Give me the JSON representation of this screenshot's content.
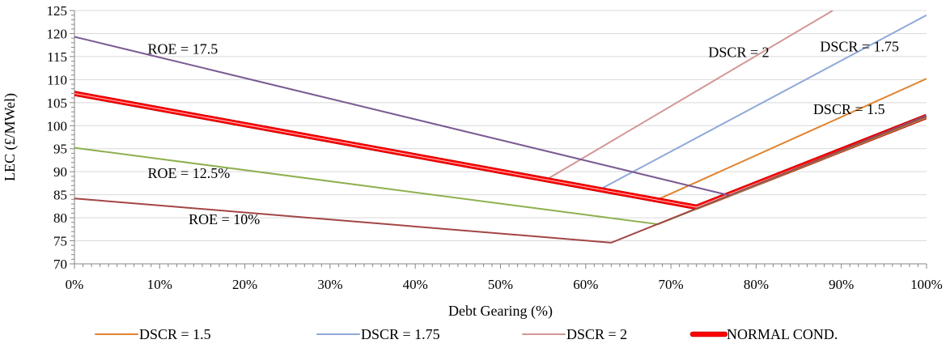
{
  "chart_data": {
    "type": "line",
    "xlabel": "Debt Gearing (%)",
    "ylabel": "LEC (£/MWel)",
    "xlim": [
      0,
      100
    ],
    "ylim": [
      70,
      125
    ],
    "x_ticks": [
      "0%",
      "10%",
      "20%",
      "30%",
      "40%",
      "50%",
      "60%",
      "70%",
      "80%",
      "90%",
      "100%"
    ],
    "y_ticks": [
      "70",
      "75",
      "80",
      "85",
      "90",
      "95",
      "100",
      "105",
      "110",
      "115",
      "120",
      "125"
    ],
    "grid": "horizontal",
    "legend_position": "bottom",
    "series": [
      {
        "name": "DSCR = 1.5",
        "color": "#E0832F",
        "width": 2,
        "legend": true,
        "points": [
          [
            68.5,
            84.0
          ],
          [
            100,
            110.2
          ]
        ]
      },
      {
        "name": "DSCR = 1.75",
        "color": "#8EA9D8",
        "width": 2,
        "legend": true,
        "points": [
          [
            61.5,
            86.0
          ],
          [
            100,
            124.0
          ]
        ]
      },
      {
        "name": "DSCR = 2",
        "color": "#D49797",
        "width": 2,
        "legend": true,
        "points": [
          [
            55.5,
            88.4
          ],
          [
            89,
            125.0
          ]
        ]
      },
      {
        "name": "NORMAL COND.",
        "color": "#FF0000",
        "width": 5,
        "legend": true,
        "outline": "#C00000",
        "points": [
          [
            0,
            107.0
          ],
          [
            73,
            82.3
          ],
          [
            100,
            102.0
          ]
        ]
      },
      {
        "color": "#7A5B93",
        "width": 2,
        "legend": false,
        "points": [
          [
            0,
            119.3
          ],
          [
            77,
            84.8
          ],
          [
            100,
            102.2
          ]
        ]
      },
      {
        "color": "#8FB04F",
        "width": 2,
        "legend": false,
        "points": [
          [
            0,
            95.2
          ],
          [
            68.5,
            78.6
          ],
          [
            100,
            101.8
          ]
        ]
      },
      {
        "color": "#A34545",
        "width": 2,
        "legend": false,
        "points": [
          [
            0,
            84.2
          ],
          [
            63,
            74.6
          ],
          [
            100,
            102.0
          ]
        ]
      }
    ],
    "annotations": [
      {
        "text": "ROE = 17.5",
        "x": 8.6,
        "y": 115.6
      },
      {
        "text": "ROE = 12.5%",
        "x": 8.6,
        "y": 88.6
      },
      {
        "text": "ROE = 10%",
        "x": 13.4,
        "y": 78.6
      },
      {
        "text": "DSCR = 2",
        "x": 74.4,
        "y": 114.9
      },
      {
        "text": "DSCR = 1.75",
        "x": 87.5,
        "y": 116.1
      },
      {
        "text": "DSCR = 1.5",
        "x": 86.7,
        "y": 102.5
      }
    ]
  }
}
